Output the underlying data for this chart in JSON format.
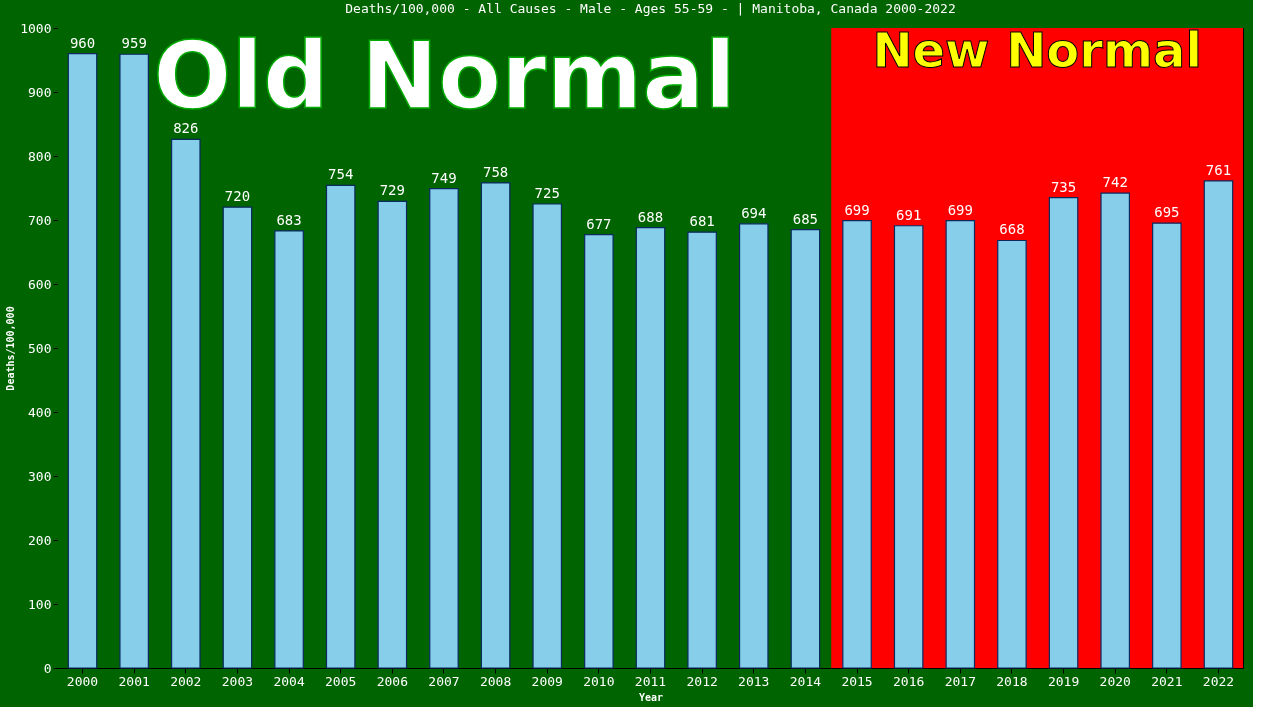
{
  "chart_data": {
    "type": "bar",
    "title": "Deaths/100,000 - All Causes - Male - Ages 55-59 -  | Manitoba, Canada 2000-2022",
    "xlabel": "Year",
    "ylabel": "Deaths/100,000",
    "categories": [
      "2000",
      "2001",
      "2002",
      "2003",
      "2004",
      "2005",
      "2006",
      "2007",
      "2008",
      "2009",
      "2010",
      "2011",
      "2012",
      "2013",
      "2014",
      "2015",
      "2016",
      "2017",
      "2018",
      "2019",
      "2020",
      "2021",
      "2022"
    ],
    "series": [
      {
        "color": "#87ceeb",
        "values": [
          960,
          959,
          826,
          720,
          683,
          754,
          729,
          749,
          758,
          725,
          677,
          688,
          681,
          694,
          685,
          699,
          691,
          699,
          668,
          735,
          742,
          695,
          761
        ]
      }
    ],
    "ylim": [
      0,
      1000
    ],
    "yticks": [
      0,
      100,
      200,
      300,
      400,
      500,
      600,
      700,
      800,
      900,
      1000
    ],
    "grid": false,
    "data_labels": true,
    "bands": [
      {
        "axis": "x",
        "from": "2000",
        "to": "2014",
        "label": "Old Normal",
        "color": "#006400"
      },
      {
        "axis": "x",
        "from": "2015",
        "to": "2022",
        "label": "New Normal",
        "color": "#ff0000"
      }
    ]
  }
}
